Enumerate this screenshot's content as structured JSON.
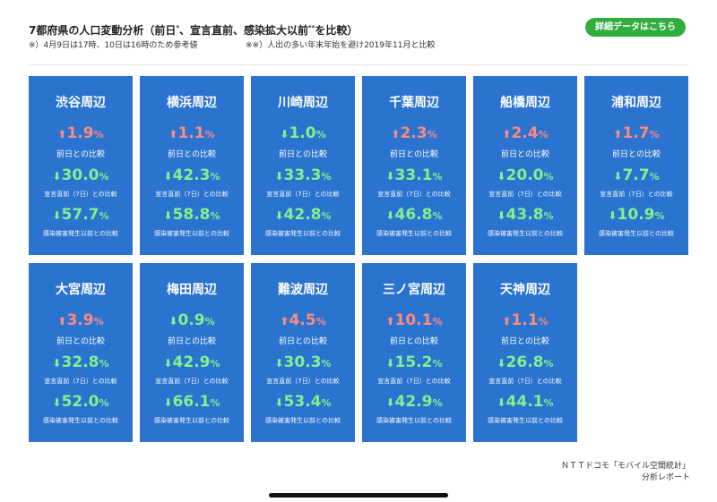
{
  "header": {
    "title": "7都府県の人口変動分析（前日",
    "title_sup1": "*",
    "title_mid": "、宣言直前、感染拡大以前",
    "title_sup2": "**",
    "title_end": "を比較）",
    "note1": "※）4月9日は17時、10日は16時のため参考値",
    "note2": "※※）人出の多い年末年始を避け2019年11月と比較",
    "detail_button": "詳細データはこちら"
  },
  "labels": {
    "prev_day": "前日との比較",
    "pre_declaration": "宣言直前（7日）との比較",
    "pre_outbreak": "感染被害発生以前との比較",
    "pct": "%",
    "up_arrow": "⬆",
    "down_arrow": "⬇"
  },
  "colors": {
    "card": "#2a73cf",
    "up": "#ff8a85",
    "down": "#86ef8f",
    "button": "#2fae3c"
  },
  "areas": [
    {
      "name": "渋谷周辺",
      "v1": "1.9",
      "d1": "up",
      "v2": "30.0",
      "d2": "down",
      "v3": "57.7",
      "d3": "down"
    },
    {
      "name": "横浜周辺",
      "v1": "1.1",
      "d1": "up",
      "v2": "42.3",
      "d2": "down",
      "v3": "58.8",
      "d3": "down"
    },
    {
      "name": "川崎周辺",
      "v1": "1.0",
      "d1": "down",
      "v2": "33.3",
      "d2": "down",
      "v3": "42.8",
      "d3": "down"
    },
    {
      "name": "千葉周辺",
      "v1": "2.3",
      "d1": "up",
      "v2": "33.1",
      "d2": "down",
      "v3": "46.8",
      "d3": "down"
    },
    {
      "name": "船橋周辺",
      "v1": "2.4",
      "d1": "up",
      "v2": "20.0",
      "d2": "down",
      "v3": "43.8",
      "d3": "down"
    },
    {
      "name": "浦和周辺",
      "v1": "1.7",
      "d1": "up",
      "v2": "7.7",
      "d2": "down",
      "v3": "10.9",
      "d3": "down"
    },
    {
      "name": "大宮周辺",
      "v1": "3.9",
      "d1": "up",
      "v2": "32.8",
      "d2": "down",
      "v3": "52.0",
      "d3": "down"
    },
    {
      "name": "梅田周辺",
      "v1": "0.9",
      "d1": "down",
      "v2": "42.9",
      "d2": "down",
      "v3": "66.1",
      "d3": "down"
    },
    {
      "name": "難波周辺",
      "v1": "4.5",
      "d1": "up",
      "v2": "30.3",
      "d2": "down",
      "v3": "53.4",
      "d3": "down"
    },
    {
      "name": "三ノ宮周辺",
      "v1": "10.1",
      "d1": "up",
      "v2": "15.2",
      "d2": "down",
      "v3": "42.9",
      "d3": "down"
    },
    {
      "name": "天神周辺",
      "v1": "1.1",
      "d1": "up",
      "v2": "26.8",
      "d2": "down",
      "v3": "44.1",
      "d3": "down"
    }
  ],
  "footer": {
    "source_line1": "ＮＴＴドコモ「モバイル空間統計」",
    "source_line2": "分析レポート"
  }
}
